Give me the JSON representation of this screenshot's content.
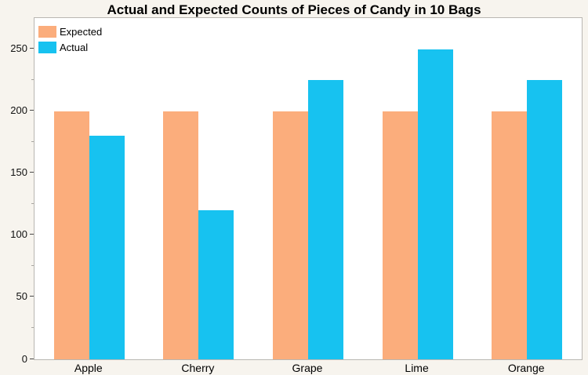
{
  "page": {
    "background_color": "#F7F4EE",
    "plot_background_color": "#FFFFFF",
    "frame_border_color": "#b9b7b2"
  },
  "title": "Actual and Expected Counts of Pieces of Candy in 10 Bags",
  "legend": {
    "position": "top-left",
    "items": [
      {
        "label": "Expected",
        "color": "#FBAD7C"
      },
      {
        "label": "Actual",
        "color": "#17C2F0"
      }
    ]
  },
  "chart_data": {
    "type": "bar",
    "title": "Actual and Expected Counts of Pieces of Candy in 10 Bags",
    "categories": [
      "Apple",
      "Cherry",
      "Grape",
      "Lime",
      "Orange"
    ],
    "series": [
      {
        "name": "Expected",
        "color": "#FBAD7C",
        "values": [
          200,
          200,
          200,
          200,
          200
        ]
      },
      {
        "name": "Actual",
        "color": "#17C2F0",
        "values": [
          180,
          120,
          225,
          250,
          225
        ]
      }
    ],
    "xlabel": "",
    "ylabel": "",
    "ylim": [
      0,
      275
    ],
    "yticks_major": [
      0,
      50,
      100,
      150,
      200,
      250
    ],
    "yticks_minor": [
      25,
      75,
      125,
      175,
      225
    ],
    "grid": false,
    "legend_position": "top-left"
  }
}
